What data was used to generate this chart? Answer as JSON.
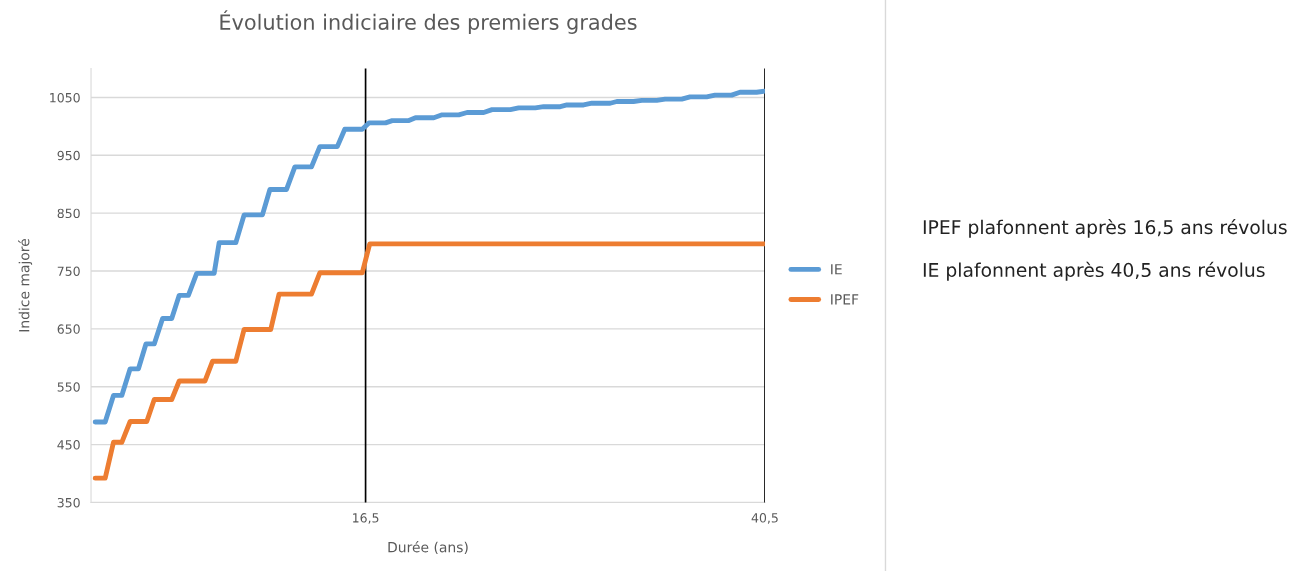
{
  "chart_data": {
    "type": "line",
    "title": "Évolution indiciaire des premiers grades",
    "xlabel": "Durée (ans)",
    "ylabel": "Indice majoré",
    "xlim": [
      0,
      40.5
    ],
    "xticks": [
      {
        "value": 16.5,
        "label": "16,5"
      },
      {
        "value": 40.5,
        "label": "40,5"
      }
    ],
    "ylim": [
      350,
      1100
    ],
    "yticks": [
      350,
      450,
      550,
      650,
      750,
      850,
      950,
      1050
    ],
    "grid": "y",
    "legend": "right",
    "marker": "none",
    "line_style": "solid",
    "series": [
      {
        "name": "IE",
        "color": "#5b9bd5",
        "x": [
          0.25,
          0.85,
          1.35,
          1.85,
          2.35,
          2.85,
          3.3,
          3.8,
          4.3,
          4.85,
          5.3,
          5.85,
          6.35,
          7.4,
          7.7,
          8.7,
          9.2,
          10.3,
          10.75,
          11.75,
          12.25,
          13.25,
          13.75,
          14.8,
          15.25,
          16.3,
          16.7,
          17.7,
          18.1,
          19.1,
          19.5,
          20.6,
          21.1,
          22.1,
          22.6,
          23.6,
          24.1,
          25.2,
          25.7,
          26.7,
          27.2,
          28.2,
          28.6,
          29.6,
          30.1,
          31.2,
          31.6,
          32.6,
          33.1,
          34.0,
          34.5,
          35.5,
          36.0,
          37.0,
          37.5,
          38.5,
          39.0,
          40.0,
          40.5
        ],
        "values": [
          489,
          489,
          535,
          535,
          581,
          581,
          624,
          624,
          668,
          668,
          708,
          708,
          746,
          746,
          799,
          799,
          847,
          847,
          891,
          891,
          930,
          930,
          965,
          965,
          995,
          995,
          1006,
          1006,
          1010,
          1010,
          1015,
          1015,
          1020,
          1020,
          1024,
          1024,
          1029,
          1029,
          1032,
          1032,
          1034,
          1034,
          1037,
          1037,
          1040,
          1040,
          1043,
          1043,
          1045,
          1045,
          1047,
          1047,
          1051,
          1051,
          1054,
          1054,
          1059,
          1059,
          1061
        ]
      },
      {
        "name": "IPEF",
        "color": "#ed7d31",
        "x": [
          0.25,
          0.85,
          1.35,
          1.85,
          2.35,
          3.35,
          3.8,
          4.85,
          5.3,
          6.85,
          7.3,
          8.7,
          9.2,
          10.8,
          11.3,
          13.25,
          13.75,
          16.3,
          16.75,
          40.5
        ],
        "values": [
          392,
          392,
          454,
          454,
          490,
          490,
          528,
          528,
          560,
          560,
          594,
          594,
          649,
          649,
          710,
          710,
          747,
          747,
          797,
          797
        ]
      }
    ],
    "ref_lines": [
      {
        "axis": "x",
        "value": 16.5,
        "color": "#000000"
      },
      {
        "axis": "x",
        "value": 40.5,
        "color": "#000000"
      }
    ],
    "annotations": [
      "IPEF plafonnent après 16,5 ans révolus",
      "IE plafonnent après 40,5 ans révolus"
    ]
  }
}
